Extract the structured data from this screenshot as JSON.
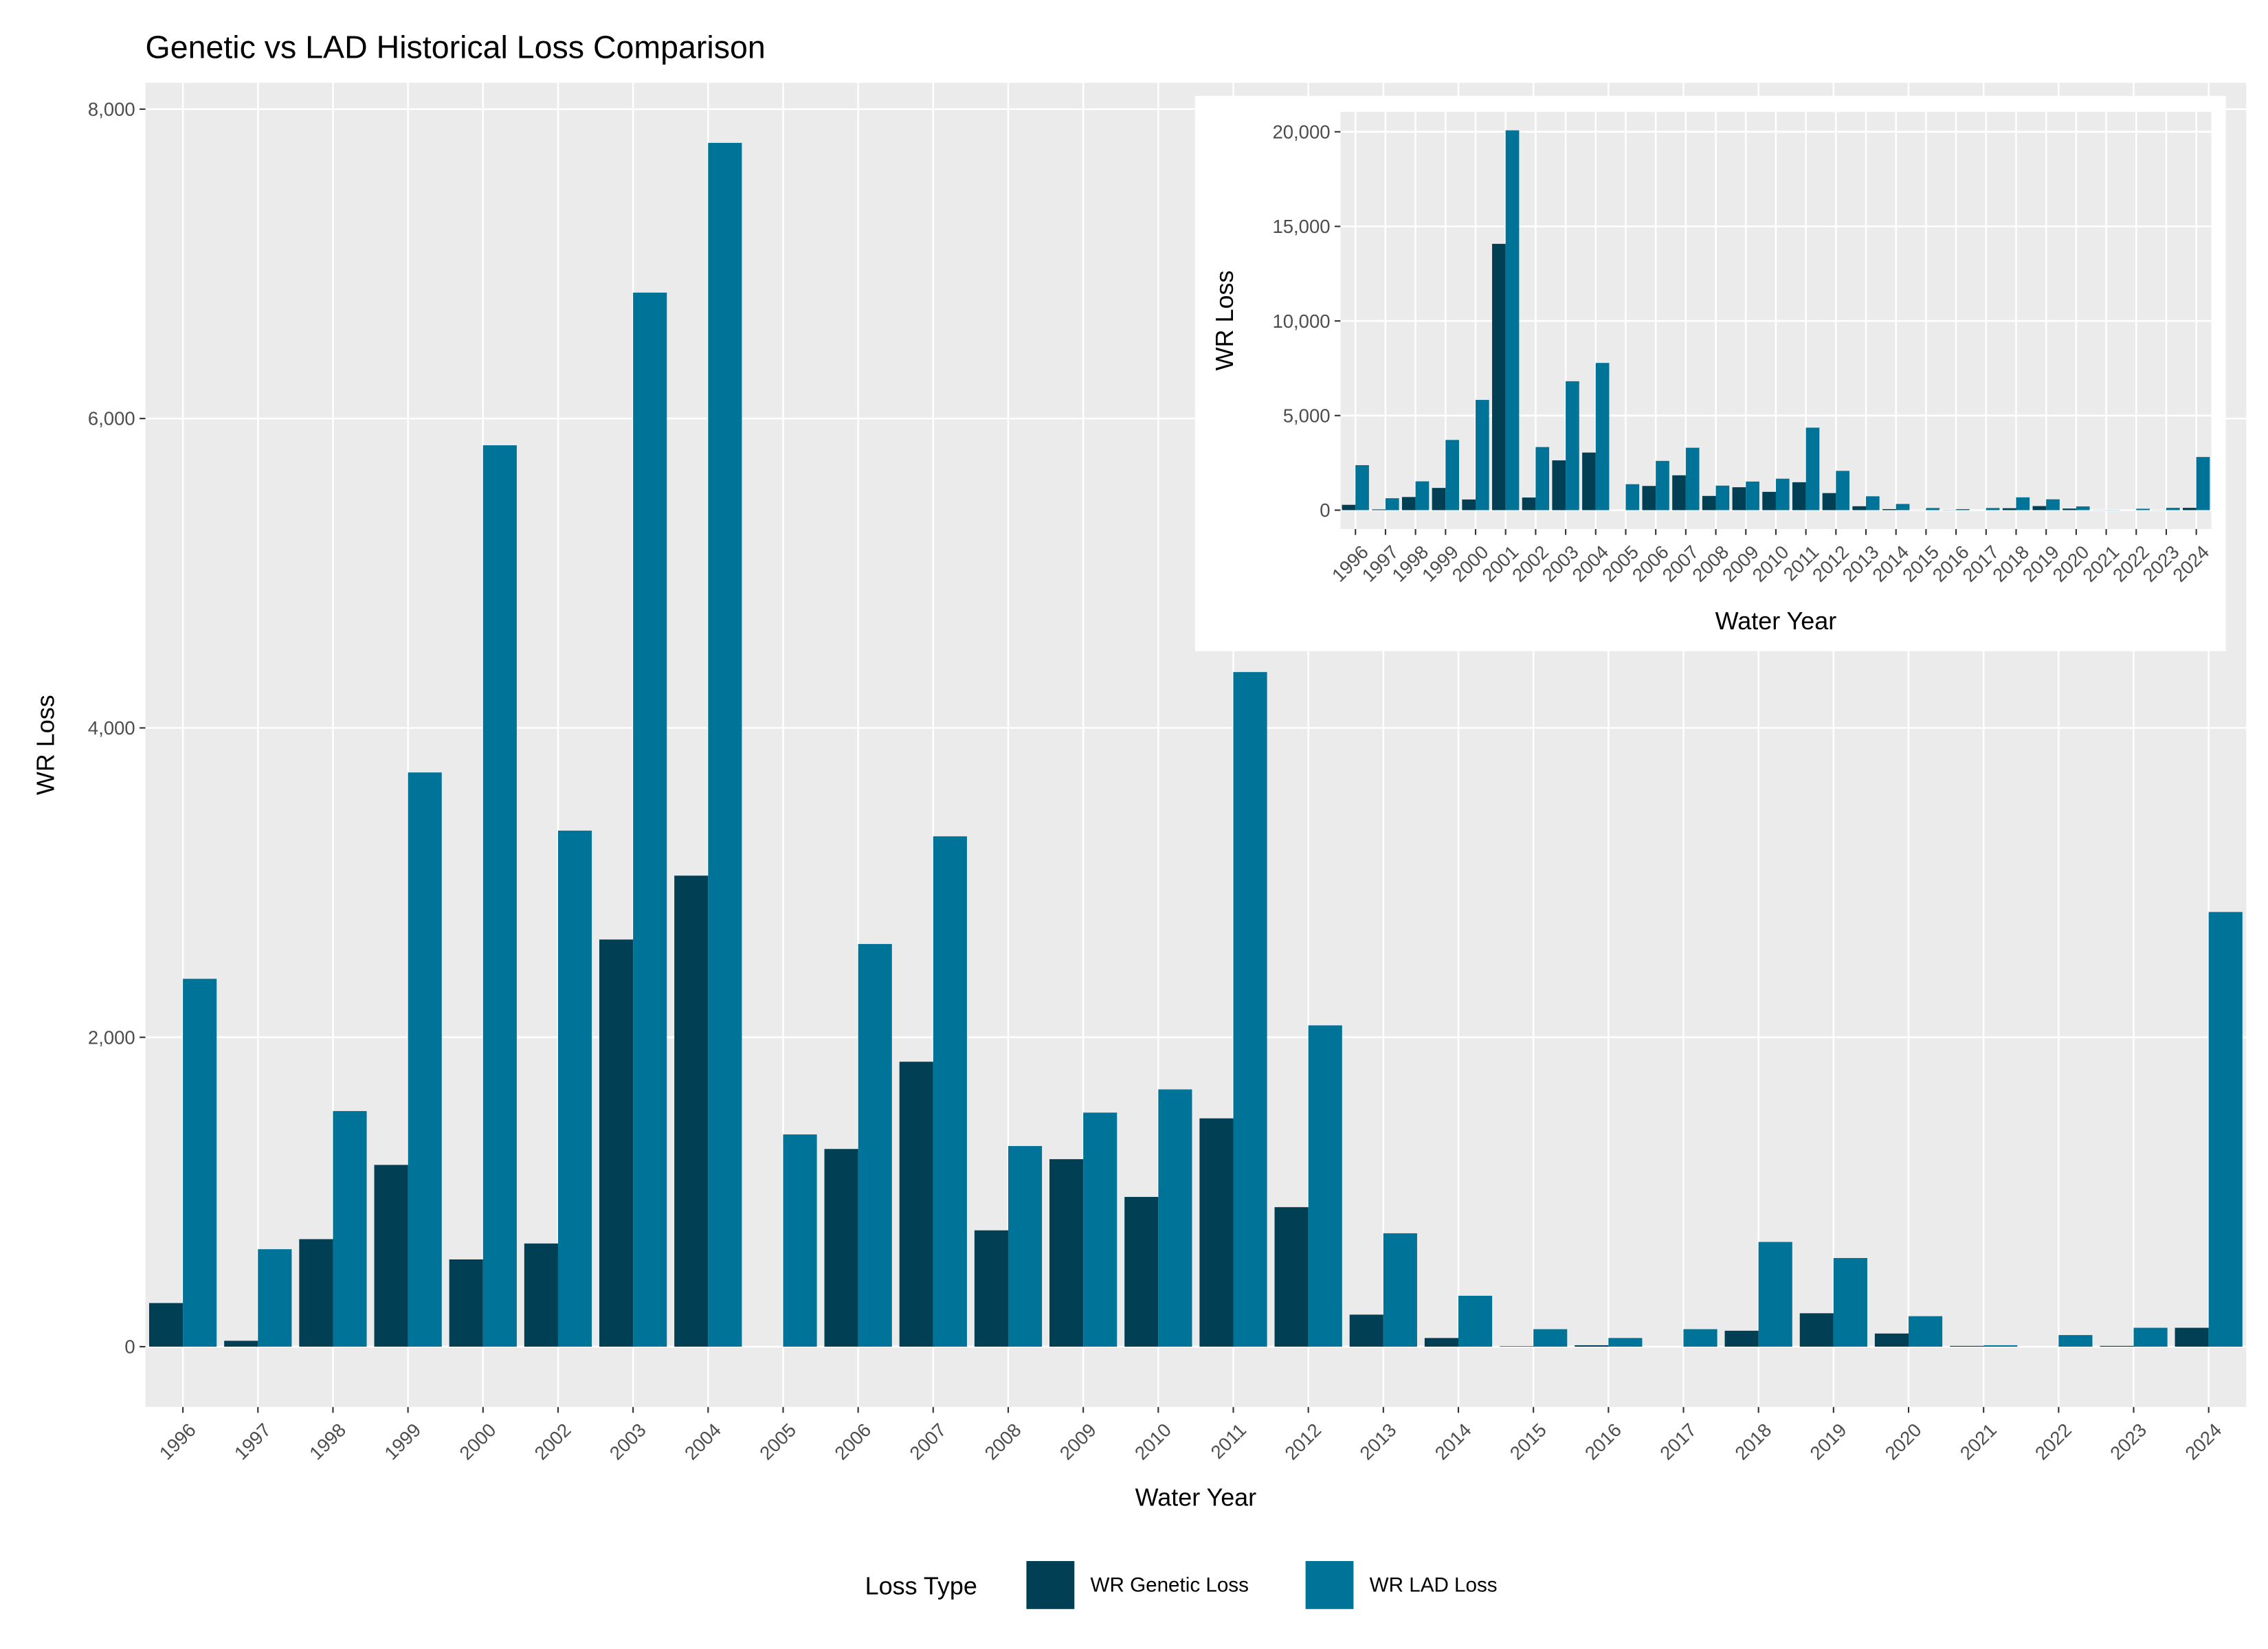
{
  "chart_data": [
    {
      "type": "bar",
      "title": "Genetic vs LAD Historical Loss Comparison",
      "x_label": "Water Year",
      "y_label": "WR Loss",
      "legend_title": "Loss Type",
      "legend": "bottom",
      "grid": true,
      "categories": [
        "1996",
        "1997",
        "1998",
        "1999",
        "2000",
        "2002",
        "2003",
        "2004",
        "2005",
        "2006",
        "2007",
        "2008",
        "2009",
        "2010",
        "2011",
        "2012",
        "2013",
        "2014",
        "2015",
        "2016",
        "2017",
        "2018",
        "2019",
        "2020",
        "2021",
        "2022",
        "2023",
        "2024"
      ],
      "series": [
        {
          "name": "WR Genetic Loss",
          "color": "#003f54",
          "values": [
            282,
            38,
            695,
            1175,
            564,
            667,
            2632,
            3045,
            0,
            1278,
            1842,
            752,
            1212,
            968,
            1476,
            902,
            207,
            56,
            3,
            9,
            0,
            103,
            216,
            85,
            5,
            0,
            5,
            122
          ]
        },
        {
          "name": "WR LAD Loss",
          "color": "#007398",
          "values": [
            2378,
            630,
            1523,
            3712,
            5827,
            3336,
            6814,
            7782,
            1372,
            2603,
            3299,
            1297,
            1513,
            1663,
            4361,
            2077,
            733,
            329,
            113,
            56,
            113,
            677,
            573,
            197,
            9,
            75,
            122,
            2810
          ]
        }
      ],
      "ylim": [
        -390,
        8170
      ],
      "yticks": [
        0,
        {
          "value": 2000,
          "label": "2,000"
        },
        {
          "value": 4000,
          "label": "4,000"
        },
        {
          "value": 6000,
          "label": "6,000"
        },
        {
          "value": 8000,
          "label": "8,000"
        }
      ]
    },
    {
      "type": "bar",
      "x_label": "Water Year",
      "y_label": "WR Loss",
      "grid": true,
      "categories": [
        "1996",
        "1997",
        "1998",
        "1999",
        "2000",
        "2001",
        "2002",
        "2003",
        "2004",
        "2005",
        "2006",
        "2007",
        "2008",
        "2009",
        "2010",
        "2011",
        "2012",
        "2013",
        "2014",
        "2015",
        "2016",
        "2017",
        "2018",
        "2019",
        "2020",
        "2021",
        "2022",
        "2023",
        "2024"
      ],
      "series": [
        {
          "name": "WR Genetic Loss",
          "color": "#003f54",
          "values": [
            282,
            38,
            695,
            1175,
            564,
            14077,
            667,
            2632,
            3045,
            0,
            1278,
            1842,
            752,
            1212,
            968,
            1476,
            902,
            207,
            56,
            3,
            9,
            0,
            103,
            216,
            85,
            5,
            0,
            5,
            122
          ]
        },
        {
          "name": "WR LAD Loss",
          "color": "#007398",
          "values": [
            2378,
            630,
            1523,
            3712,
            5827,
            20077,
            3336,
            6814,
            7782,
            1372,
            2603,
            3299,
            1297,
            1513,
            1663,
            4361,
            2077,
            733,
            329,
            113,
            56,
            113,
            677,
            573,
            197,
            9,
            75,
            122,
            2810
          ]
        }
      ],
      "ylim": [
        -1000,
        21050
      ],
      "yticks": [
        0,
        {
          "value": 5000,
          "label": "5,000"
        },
        {
          "value": 10000,
          "label": "10,000"
        },
        {
          "value": 15000,
          "label": "15,000"
        },
        {
          "value": 20000,
          "label": "20,000"
        }
      ]
    }
  ]
}
